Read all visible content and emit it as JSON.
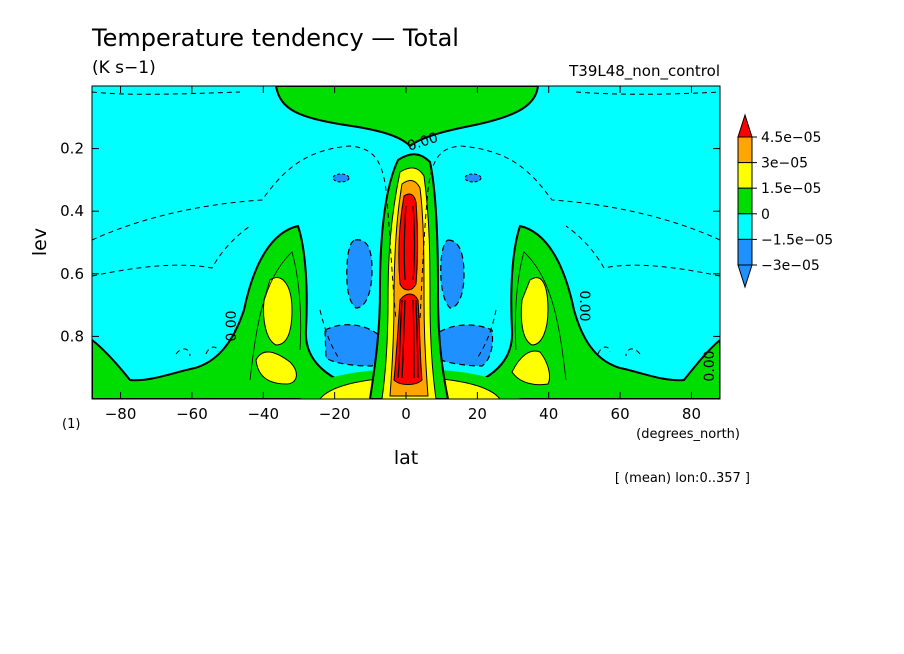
{
  "title": "Temperature tendency — Total",
  "units": "(K s−1)",
  "run_label": "T39L48_non_control",
  "scale_note": "(1)",
  "mean_note": "[ (mean) lon:0..357 ]",
  "chart_data": {
    "type": "contour",
    "title": "Temperature tendency — Total",
    "units": "(K s−1)",
    "xlabel": "lat",
    "xunits": "(degrees_north)",
    "ylabel": "lev",
    "xlim": [
      -88,
      88
    ],
    "ylim": [
      1.0,
      0.0
    ],
    "x_ticks": [
      -80,
      -60,
      -40,
      -20,
      0,
      20,
      40,
      60,
      80
    ],
    "x_tick_labels": [
      "−80",
      "−60",
      "−40",
      "−20",
      "0",
      "20",
      "40",
      "60",
      "80"
    ],
    "y_ticks": [
      0.2,
      0.4,
      0.6,
      0.8
    ],
    "y_tick_labels": [
      "0.2",
      "0.4",
      "0.6",
      "0.8"
    ],
    "contour_labels": [
      "0.00",
      "0.00",
      "0.00",
      "0.00"
    ],
    "colorbar": {
      "levels": [
        "4.5e−05",
        "3e−05",
        "1.5e−05",
        "0",
        "−1.5e−05",
        "−3e−05"
      ],
      "colors": [
        "#ff0000",
        "#ffa500",
        "#ffff00",
        "#00dd00",
        "#00ffff",
        "#1e90ff"
      ]
    },
    "field_features": [
      {
        "name": "equatorial heating maximum",
        "lat_min": -3,
        "lat_max": 3,
        "lev_min": 0.32,
        "lev_max": 0.99,
        "value": "> 4.5e-05"
      },
      {
        "name": "midlatitude heating (SH)",
        "lat_min": -44,
        "lat_max": -30,
        "lev_min": 0.5,
        "lev_max": 0.99,
        "value": "0 to 3e-05"
      },
      {
        "name": "midlatitude heating (NH)",
        "lat_min": 30,
        "lat_max": 44,
        "lev_min": 0.5,
        "lev_max": 0.99,
        "value": "0 to 3e-05"
      },
      {
        "name": "stratospheric warming",
        "lat_min": -38,
        "lat_max": 36,
        "lev_min": 0.0,
        "lev_max": 0.18,
        "value": "0 to 1.5e-05"
      },
      {
        "name": "subtropical cooling (SH)",
        "lat_min": -24,
        "lat_max": -6,
        "lev_min": 0.73,
        "lev_max": 0.9,
        "value": "< -1.5e-05"
      },
      {
        "name": "subtropical cooling (NH)",
        "lat_min": 6,
        "lat_max": 24,
        "lev_min": 0.73,
        "lev_max": 0.9,
        "value": "< -1.5e-05"
      },
      {
        "name": "background",
        "value": "-1.5e-05 to 0"
      }
    ]
  }
}
